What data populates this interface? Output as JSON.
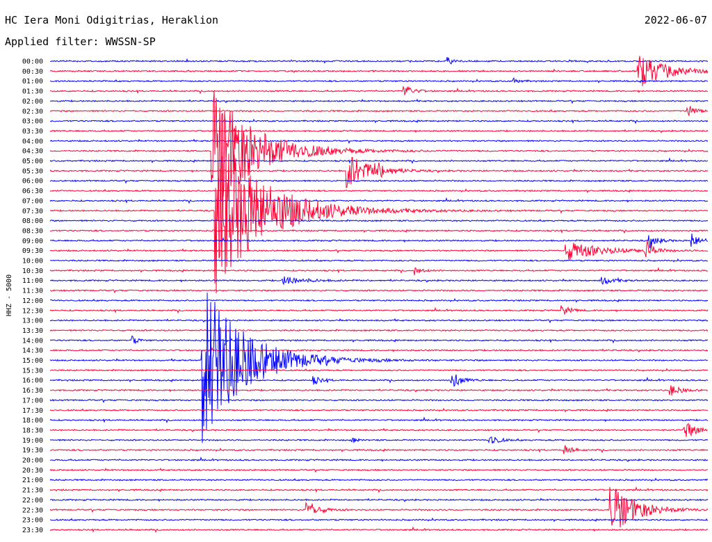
{
  "header": {
    "station": "HC Iera Moni Odigitrias, Heraklion",
    "date": "2022-06-07",
    "filter_text": "Applied filter: WWSSN-SP"
  },
  "chart_data": {
    "type": "line",
    "title": "HC Iera Moni Odigitrias, Heraklion",
    "ylabel": "HHZ - 5000",
    "xlabel": "",
    "colors": {
      "even_row": "#0000ff",
      "odd_row": "#ff0033"
    },
    "rows": [
      "00:00",
      "00:30",
      "01:00",
      "01:30",
      "02:00",
      "02:30",
      "03:00",
      "03:30",
      "04:00",
      "04:30",
      "05:00",
      "05:30",
      "06:00",
      "06:30",
      "07:00",
      "07:30",
      "08:00",
      "08:30",
      "09:00",
      "09:30",
      "10:00",
      "10:30",
      "11:00",
      "11:30",
      "12:00",
      "12:30",
      "13:00",
      "13:30",
      "14:00",
      "14:30",
      "15:00",
      "15:30",
      "16:00",
      "16:30",
      "17:00",
      "17:30",
      "18:00",
      "18:30",
      "19:00",
      "19:30",
      "20:00",
      "20:30",
      "21:00",
      "21:30",
      "22:00",
      "22:30",
      "23:00",
      "23:30"
    ],
    "events": [
      {
        "row": 0,
        "x": 0.605,
        "amp": 5,
        "decay": 0.01
      },
      {
        "row": 1,
        "x": 0.895,
        "amp": 25,
        "decay": 0.04
      },
      {
        "row": 2,
        "x": 0.705,
        "amp": 4,
        "decay": 0.008
      },
      {
        "row": 3,
        "x": 0.538,
        "amp": 10,
        "decay": 0.012
      },
      {
        "row": 5,
        "x": 0.97,
        "amp": 10,
        "decay": 0.01
      },
      {
        "row": 9,
        "x": 0.247,
        "amp": 95,
        "decay": 0.06
      },
      {
        "row": 11,
        "x": 0.452,
        "amp": 28,
        "decay": 0.03
      },
      {
        "row": 11,
        "x": 0.495,
        "amp": 8,
        "decay": 0.015
      },
      {
        "row": 15,
        "x": 0.252,
        "amp": 120,
        "decay": 0.07
      },
      {
        "row": 19,
        "x": 0.785,
        "amp": 14,
        "decay": 0.05
      },
      {
        "row": 18,
        "x": 0.912,
        "amp": 10,
        "decay": 0.012
      },
      {
        "row": 18,
        "x": 0.975,
        "amp": 11,
        "decay": 0.012
      },
      {
        "row": 19,
        "x": 0.905,
        "amp": 16,
        "decay": 0.01
      },
      {
        "row": 21,
        "x": 0.555,
        "amp": 6,
        "decay": 0.01
      },
      {
        "row": 22,
        "x": 0.355,
        "amp": 6,
        "decay": 0.03
      },
      {
        "row": 22,
        "x": 0.84,
        "amp": 6,
        "decay": 0.015
      },
      {
        "row": 25,
        "x": 0.778,
        "amp": 7,
        "decay": 0.012
      },
      {
        "row": 28,
        "x": 0.125,
        "amp": 6,
        "decay": 0.008
      },
      {
        "row": 30,
        "x": 0.232,
        "amp": 120,
        "decay": 0.06
      },
      {
        "row": 32,
        "x": 0.4,
        "amp": 6,
        "decay": 0.012
      },
      {
        "row": 32,
        "x": 0.61,
        "amp": 15,
        "decay": 0.012
      },
      {
        "row": 33,
        "x": 0.943,
        "amp": 8,
        "decay": 0.015
      },
      {
        "row": 37,
        "x": 0.965,
        "amp": 12,
        "decay": 0.018
      },
      {
        "row": 38,
        "x": 0.668,
        "amp": 12,
        "decay": 0.01
      },
      {
        "row": 38,
        "x": 0.46,
        "amp": 4,
        "decay": 0.006
      },
      {
        "row": 39,
        "x": 0.783,
        "amp": 7,
        "decay": 0.01
      },
      {
        "row": 45,
        "x": 0.39,
        "amp": 16,
        "decay": 0.015
      },
      {
        "row": 45,
        "x": 0.852,
        "amp": 40,
        "decay": 0.035
      }
    ]
  }
}
